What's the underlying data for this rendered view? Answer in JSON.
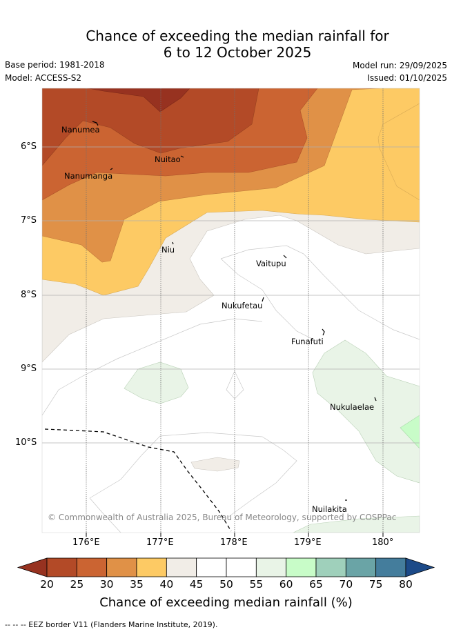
{
  "title_line1": "Chance of exceeding the median rainfall for",
  "title_line2": "6 to 12 October 2025",
  "base_period": "Base period: 1981-2018",
  "model": "Model: ACCESS-S2",
  "model_run": "Model run: 29/09/2025",
  "issued": "Issued: 01/10/2025",
  "islands": [
    "Nanumea",
    "Nuitao",
    "Nanumanga",
    "Niu",
    "Vaitupu",
    "Nukufetau",
    "Funafuti",
    "Nukulaelae",
    "Nuilakita"
  ],
  "lat_labels": [
    "6°S",
    "7°S",
    "8°S",
    "9°S",
    "10°S"
  ],
  "lon_labels": [
    "176°E",
    "177°E",
    "178°E",
    "179°E",
    "180°"
  ],
  "copyright": "© Commonwealth of Australia 2025, Bureau of Meteorology, supported by COSPPac",
  "colorbar": {
    "ticks": [
      "20",
      "25",
      "30",
      "35",
      "40",
      "45",
      "50",
      "55",
      "60",
      "65",
      "70",
      "75",
      "80"
    ],
    "colors": [
      "#973220",
      "#b34a27",
      "#cb6432",
      "#e09147",
      "#fdca64",
      "#f1ede7",
      "#ffffff",
      "#ffffff",
      "#e9f4e7",
      "#c8fcc8",
      "#9fd0bb",
      "#6aa4a6",
      "#447d9c",
      "#1c4a88"
    ],
    "title": "Chance of exceeding median rainfall (%)"
  },
  "legend_border": "-- -- -- EEZ border V11 (Flanders Marine Institute, 2019)."
}
